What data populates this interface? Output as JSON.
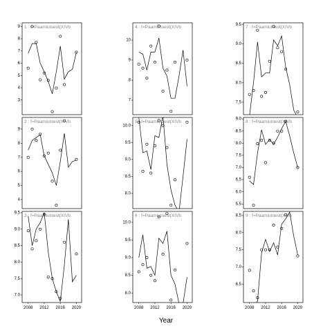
{
  "xlabel": "Year",
  "chart_data": [
    {
      "type": "scatter",
      "title": "1 : f=Paamiutoest(XIVb",
      "x": [
        2008,
        2009,
        2010,
        2011,
        2012,
        2013,
        2014,
        2015,
        2016,
        2017,
        2018,
        2019,
        2020
      ],
      "xlim": [
        2006.5,
        2021.3
      ],
      "ylim": [
        1.8,
        9.3
      ],
      "yticks": [
        3,
        4,
        5,
        6,
        7,
        8,
        9
      ],
      "series": [
        {
          "marker": "circle",
          "color": "#000000",
          "values": [
            5.6,
            9.0,
            7.7,
            4.65,
            5.2,
            4.6,
            2.05,
            3.97,
            8.2,
            4.25,
            null,
            null,
            6.9
          ]
        },
        {
          "marker": "line",
          "color": "#000000",
          "values": [
            6.8,
            7.6,
            7.6,
            6.0,
            5.3,
            4.5,
            3.5,
            5.3,
            7.4,
            4.7,
            5.3,
            5.5,
            6.9
          ]
        }
      ]
    },
    {
      "type": "scatter",
      "title": "2 : f=Paamiutoest(XIVb",
      "x": [
        2008,
        2009,
        2010,
        2011,
        2012,
        2013,
        2014,
        2015,
        2016,
        2017,
        2018,
        2019,
        2020
      ],
      "xlim": [
        2006.5,
        2021.3
      ],
      "ylim": [
        3.36,
        9.83
      ],
      "yticks": [
        4,
        5,
        6,
        7,
        8,
        9
      ],
      "series": [
        {
          "marker": "circle",
          "color": "#000000",
          "values": [
            7.0,
            9.0,
            8.2,
            8.65,
            7.1,
            7.3,
            5.3,
            3.6,
            7.5,
            9.6,
            null,
            null,
            6.85
          ]
        },
        {
          "marker": "line",
          "color": "#000000",
          "values": [
            7.5,
            8.2,
            8.4,
            8.6,
            7.1,
            6.5,
            5.9,
            5.0,
            6.7,
            8.7,
            6.3,
            6.7,
            6.8
          ]
        }
      ]
    },
    {
      "type": "scatter",
      "title": "3 : f=Paamiutoest(XIVb",
      "x": [
        2008,
        2009,
        2010,
        2011,
        2012,
        2013,
        2014,
        2015,
        2016,
        2017,
        2018,
        2019,
        2020
      ],
      "xlim": [
        2006.5,
        2021.3
      ],
      "ylim": [
        6.77,
        9.54
      ],
      "yticks": [
        {
          "value": 7,
          "label": "7.0"
        },
        7.5,
        {
          "value": 8,
          "label": "8.0"
        },
        8.5,
        {
          "value": 9,
          "label": "9.0"
        },
        9.5
      ],
      "xticks": [
        2008,
        2012,
        2016,
        2020
      ],
      "series": [
        {
          "marker": "circle",
          "color": "#000000",
          "values": [
            8.95,
            8.4,
            8.65,
            9.0,
            9.45,
            7.55,
            7.5,
            7.1,
            6.9,
            8.6,
            null,
            null,
            8.25
          ]
        },
        {
          "marker": "line",
          "color": "#000000",
          "values": [
            9.4,
            8.5,
            9.0,
            9.2,
            9.5,
            8.3,
            7.5,
            7.1,
            6.8,
            7.9,
            9.3,
            7.4,
            7.6
          ]
        }
      ]
    },
    {
      "type": "scatter",
      "title": "4 : f=Paamiutoest(XIVb",
      "x": [
        2008,
        2009,
        2010,
        2011,
        2012,
        2013,
        2014,
        2015,
        2016,
        2017,
        2018,
        2019,
        2020
      ],
      "xlim": [
        2006.5,
        2021.3
      ],
      "ylim": [
        6.28,
        10.86
      ],
      "yticks": [
        7,
        8,
        9,
        10
      ],
      "series": [
        {
          "marker": "circle",
          "color": "#000000",
          "values": [
            8.8,
            8.6,
            8.1,
            9.7,
            8.9,
            10.7,
            7.45,
            8.5,
            6.45,
            8.9,
            null,
            null,
            9.0
          ]
        },
        {
          "marker": "line",
          "color": "#000000",
          "values": [
            9.4,
            9.3,
            8.5,
            9.4,
            9.4,
            10.1,
            8.6,
            8.2,
            7.1,
            7.1,
            8.2,
            9.5,
            7.7
          ]
        }
      ]
    },
    {
      "type": "scatter",
      "title": "5 : f=Paamiutoest(XIVb",
      "x": [
        2008,
        2009,
        2010,
        2011,
        2012,
        2013,
        2014,
        2015,
        2016,
        2017,
        2018,
        2019,
        2020
      ],
      "xlim": [
        2006.5,
        2021.3
      ],
      "ylim": [
        7.55,
        10.24
      ],
      "yticks": [
        {
          "value": 8,
          "label": "8.0"
        },
        8.5,
        {
          "value": 9,
          "label": "9.0"
        },
        9.5,
        {
          "value": 10,
          "label": "10.0"
        }
      ],
      "series": [
        {
          "marker": "circle",
          "color": "#000000",
          "values": [
            10.1,
            8.65,
            9.45,
            8.6,
            9.4,
            10.15,
            10.0,
            9.35,
            7.65,
            8.4,
            null,
            null,
            10.1
          ]
        },
        {
          "marker": "line",
          "color": "#000000",
          "values": [
            10.25,
            9.2,
            9.25,
            8.7,
            9.7,
            9.65,
            10.3,
            8.85,
            8.1,
            7.65,
            7.45,
            8.5,
            9.6
          ]
        }
      ]
    },
    {
      "type": "scatter",
      "title": "6 : f=Paamiutoest(XIVb",
      "x": [
        2008,
        2009,
        2010,
        2011,
        2012,
        2013,
        2014,
        2015,
        2016,
        2017,
        2018,
        2019,
        2020
      ],
      "xlim": [
        2006.5,
        2021.3
      ],
      "ylim": [
        7.73,
        10.31
      ],
      "yticks": [
        {
          "value": 8,
          "label": "8.0"
        },
        8.5,
        {
          "value": 9,
          "label": "9.0"
        },
        9.5,
        {
          "value": 10,
          "label": "10.0"
        }
      ],
      "xticks": [
        2008,
        2012,
        2016,
        2020
      ],
      "series": [
        {
          "marker": "circle",
          "color": "#000000",
          "values": [
            8.6,
            8.8,
            9.0,
            8.5,
            8.35,
            10.15,
            9.1,
            10.25,
            7.8,
            8.65,
            null,
            null,
            9.4
          ]
        },
        {
          "marker": "line",
          "color": "#000000",
          "values": [
            9.0,
            9.65,
            8.7,
            8.75,
            8.5,
            9.55,
            9.4,
            9.75,
            8.5,
            8.25,
            7.7,
            7.7,
            8.45
          ]
        }
      ]
    },
    {
      "type": "scatter",
      "title": "7 : f=Paamiutoest(XIVb",
      "x": [
        2008,
        2009,
        2010,
        2011,
        2012,
        2013,
        2014,
        2015,
        2016,
        2017,
        2018,
        2019,
        2020
      ],
      "xlim": [
        2006.5,
        2021.3
      ],
      "ylim": [
        7.18,
        9.54
      ],
      "yticks": [
        7.5,
        {
          "value": 8,
          "label": "8.0"
        },
        8.5,
        {
          "value": 9,
          "label": "9.0"
        },
        9.5
      ],
      "series": [
        {
          "marker": "circle",
          "color": "#000000",
          "values": [
            7.7,
            7.8,
            9.35,
            7.65,
            7.75,
            8.55,
            9.45,
            8.9,
            8.8,
            8.35,
            null,
            null,
            7.25
          ]
        },
        {
          "marker": "line",
          "color": "#000000",
          "values": [
            7.15,
            8.0,
            9.05,
            8.15,
            8.25,
            8.25,
            9.1,
            8.95,
            9.2,
            8.4,
            7.95,
            7.3,
            7.1
          ]
        }
      ]
    },
    {
      "type": "scatter",
      "title": "8 : f=Paamiutoest(XIVb",
      "x": [
        2008,
        2009,
        2010,
        2011,
        2012,
        2013,
        2014,
        2015,
        2016,
        2017,
        2018,
        2019,
        2020
      ],
      "xlim": [
        2006.5,
        2021.3
      ],
      "ylim": [
        5.31,
        9.06
      ],
      "yticks": [
        5.5,
        {
          "value": 6,
          "label": "6.0"
        },
        6.5,
        {
          "value": 7,
          "label": "7.0"
        },
        7.5,
        {
          "value": 8,
          "label": "8.0"
        },
        8.5,
        {
          "value": 9,
          "label": "9.0"
        }
      ],
      "series": [
        {
          "marker": "circle",
          "color": "#000000",
          "values": [
            6.6,
            5.45,
            7.98,
            8.12,
            7.2,
            8.12,
            8.0,
            8.5,
            8.5,
            8.9,
            null,
            null,
            7.0
          ]
        },
        {
          "marker": "line",
          "color": "#000000",
          "values": [
            6.45,
            6.3,
            7.6,
            8.55,
            7.95,
            8.15,
            7.95,
            8.25,
            8.6,
            8.9,
            8.3,
            7.6,
            7.0
          ]
        }
      ]
    },
    {
      "type": "scatter",
      "title": "9 : f=Paamiutoest(XIVb",
      "x": [
        2008,
        2009,
        2010,
        2011,
        2012,
        2013,
        2014,
        2015,
        2016,
        2017,
        2018,
        2019,
        2020
      ],
      "xlim": [
        2006.5,
        2021.3
      ],
      "ylim": [
        5.96,
        8.62
      ],
      "yticks": [
        6.5,
        {
          "value": 7,
          "label": "7.0"
        },
        7.5,
        {
          "value": 8,
          "label": "8.0"
        },
        8.5
      ],
      "xticks": [
        2008,
        2012,
        2016,
        2020
      ],
      "series": [
        {
          "marker": "circle",
          "color": "#000000",
          "values": [
            6.9,
            6.3,
            6.1,
            7.5,
            7.5,
            7.5,
            8.22,
            7.58,
            8.12,
            8.52,
            null,
            null,
            7.32
          ]
        },
        {
          "marker": "line",
          "color": "#000000",
          "values": [
            null,
            5.85,
            6.0,
            7.4,
            7.8,
            7.45,
            7.7,
            7.35,
            8.25,
            8.4,
            8.6,
            7.9,
            7.35
          ]
        }
      ]
    }
  ]
}
